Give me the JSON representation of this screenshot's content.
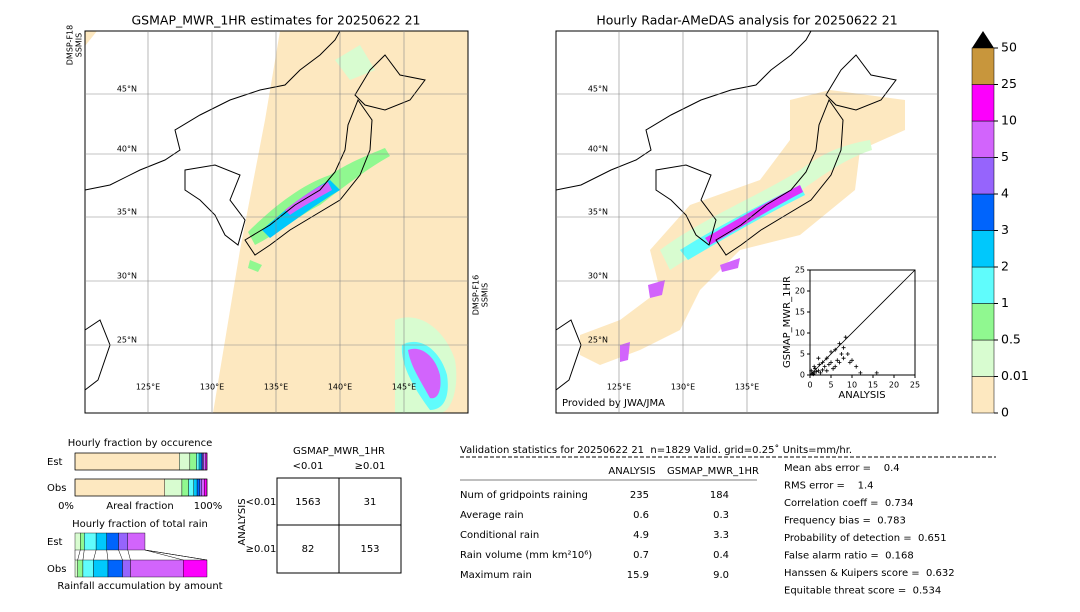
{
  "left_map": {
    "title": "GSMAP_MWR_1HR estimates for 20250622 21",
    "sensor_left": [
      "DMSP-F18",
      "SSMIS"
    ],
    "sensor_right": [
      "DMSP-F16",
      "SSMIS"
    ],
    "lat_labels": [
      "45°N",
      "40°N",
      "35°N",
      "30°N",
      "25°N"
    ],
    "lon_labels": [
      "125°E",
      "130°E",
      "135°E",
      "140°E",
      "145°E"
    ]
  },
  "right_map": {
    "title": "Hourly Radar-AMeDAS analysis for 20250622 21",
    "lat_labels": [
      "45°N",
      "40°N",
      "35°N",
      "30°N",
      "25°N"
    ],
    "lon_labels": [
      "125°E",
      "130°E",
      "135°E"
    ],
    "credit": "Provided by JWA/JMA"
  },
  "colorbar": {
    "levels": [
      0,
      0.01,
      0.5,
      1,
      2,
      3,
      4,
      5,
      10,
      25,
      50
    ],
    "colors": [
      "#fde8c0",
      "#d8fcd0",
      "#90f890",
      "#60fcfc",
      "#00c8fc",
      "#0064fc",
      "#9664fc",
      "#d264fc",
      "#fc00fc",
      "#c8963c"
    ],
    "extend_color": "#000000"
  },
  "scatter": {
    "type": "scatter",
    "xlabel": "ANALYSIS",
    "ylabel": "GSMAP_MWR_1HR",
    "xlim": [
      0,
      25
    ],
    "ylim": [
      0,
      25
    ],
    "xticks": [
      0,
      5,
      10,
      15,
      20,
      25
    ],
    "yticks": [
      0,
      5,
      10,
      15,
      20,
      25
    ],
    "x": [
      0.5,
      1,
      1.2,
      1.5,
      2,
      2.2,
      2.5,
      3,
      3,
      3.5,
      4,
      4,
      4.5,
      5,
      5,
      5.5,
      6,
      6,
      6.5,
      7,
      7,
      7.5,
      8,
      8,
      8.5,
      9,
      9.5,
      10,
      11,
      12,
      15.9,
      1,
      2,
      0.3,
      0.8
    ],
    "y": [
      0.3,
      0.5,
      1.5,
      0.8,
      1,
      2.5,
      0.5,
      3,
      1.2,
      2,
      4,
      1,
      2.5,
      3,
      5.5,
      1.5,
      6,
      2,
      3.5,
      3,
      7.5,
      5,
      4,
      6.5,
      9,
      5,
      3,
      3.5,
      2,
      0.5,
      0.5,
      2,
      4,
      1,
      0.2
    ]
  },
  "occurrence": {
    "title": "Hourly fraction by occurence",
    "rows": [
      "Est",
      "Obs"
    ],
    "xlabels": [
      "0%",
      "Areal fraction",
      "100%"
    ],
    "est": [
      0.79,
      0.08,
      0.05,
      0.02,
      0.015,
      0.01,
      0.01,
      0.015,
      0.01,
      0
    ],
    "obs": [
      0.68,
      0.13,
      0.05,
      0.04,
      0.025,
      0.02,
      0.015,
      0.02,
      0.02,
      0
    ]
  },
  "accumulation": {
    "title": "Hourly fraction of total rain",
    "rows": [
      "Est",
      "Obs"
    ],
    "xlabel": "Rainfall accumulation by amount",
    "est": [
      0,
      0.04,
      0.03,
      0.09,
      0.08,
      0.09,
      0.07,
      0.13,
      0,
      0
    ],
    "obs": [
      0,
      0.02,
      0.04,
      0.08,
      0.11,
      0.11,
      0.06,
      0.4,
      0.18,
      0
    ]
  },
  "contingency": {
    "title": "GSMAP_MWR_1HR",
    "columns": [
      "<0.01",
      "≥0.01"
    ],
    "side_label": "ANALYSIS",
    "rows": [
      "<0.01",
      "≥0.01"
    ],
    "cells": [
      [
        1563,
        31
      ],
      [
        82,
        153
      ]
    ]
  },
  "validation": {
    "header": "Validation statistics for 20250622 21  n=1829 Valid. grid=0.25˚ Units=mm/hr.",
    "columns": [
      "ANALYSIS",
      "GSMAP_MWR_1HR"
    ],
    "rows": [
      [
        "Num of gridpoints raining",
        "235",
        "184"
      ],
      [
        "Average rain",
        "0.6",
        "0.3"
      ],
      [
        "Conditional rain",
        "4.9",
        "3.3"
      ],
      [
        "Rain volume (mm km²10⁶)",
        "0.7",
        "0.4"
      ],
      [
        "Maximum rain",
        "15.9",
        "9.0"
      ]
    ],
    "scores": [
      "Mean abs error =    0.4",
      "RMS error =    1.4",
      "Correlation coeff =  0.734",
      "Frequency bias =  0.783",
      "Probability of detection =  0.651",
      "False alarm ratio =  0.168",
      "Hanssen & Kuipers score =  0.632",
      "Equitable threat score =  0.534"
    ]
  }
}
